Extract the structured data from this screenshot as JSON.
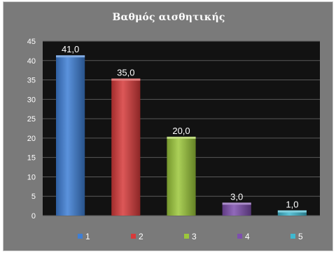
{
  "chart_data": {
    "type": "bar",
    "title": "Βαθμός αισθητικής",
    "categories": [
      "1",
      "2",
      "3",
      "4",
      "5"
    ],
    "values": [
      41,
      35,
      20,
      3,
      1
    ],
    "data_labels": [
      "41,0",
      "35,0",
      "20,0",
      "3,0",
      "1,0"
    ],
    "colors": [
      "#3e7fd6",
      "#d73a3a",
      "#9cc83a",
      "#7e4fae",
      "#3fb8d0"
    ],
    "ylim": [
      0,
      45
    ],
    "yticks": [
      0,
      5,
      10,
      15,
      20,
      25,
      30,
      35,
      40,
      45
    ],
    "legend": [
      "1",
      "2",
      "3",
      "4",
      "5"
    ],
    "legend_position": "bottom",
    "grid": true,
    "xlabel": "",
    "ylabel": ""
  }
}
